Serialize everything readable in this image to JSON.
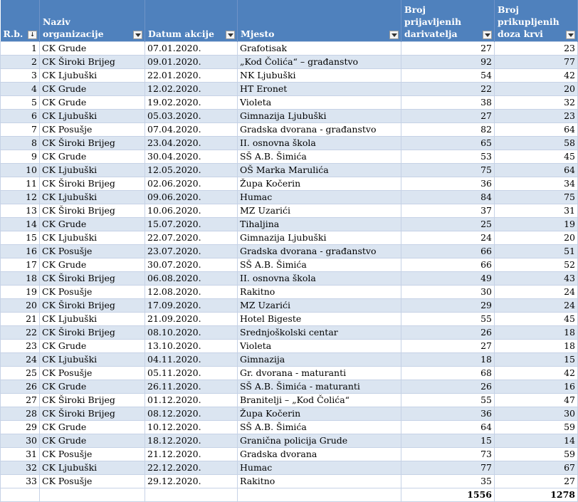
{
  "headers": [
    {
      "label": "R.b.",
      "filter": "sorted"
    },
    {
      "label": "Naziv organizacije",
      "filter": "dropdown"
    },
    {
      "label": "Datum akcije",
      "filter": "dropdown"
    },
    {
      "label": "Mjesto",
      "filter": "dropdown"
    },
    {
      "label": "Broj prijavljenih darivatelja",
      "filter": "dropdown"
    },
    {
      "label": "Broj prikupljenih doza krvi",
      "filter": "dropdown"
    }
  ],
  "rows": [
    [
      "1",
      "CK Grude",
      "07.01.2020.",
      "Grafotisak",
      "27",
      "23"
    ],
    [
      "2",
      "CK Široki Brijeg",
      "09.01.2020.",
      "„Kod Čolića“ – građanstvo",
      "92",
      "77"
    ],
    [
      "3",
      "CK Ljubuški",
      "22.01.2020.",
      "NK Ljubuški",
      "54",
      "42"
    ],
    [
      "4",
      "CK Grude",
      "12.02.2020.",
      "HT Eronet",
      "22",
      "20"
    ],
    [
      "5",
      "CK Grude",
      "19.02.2020.",
      "Violeta",
      "38",
      "32"
    ],
    [
      "6",
      "CK Ljubuški",
      "05.03.2020.",
      "Gimnazija Ljubuški",
      "27",
      "23"
    ],
    [
      "7",
      "CK Posušje",
      "07.04.2020.",
      "Gradska dvorana - građanstvo",
      "82",
      "64"
    ],
    [
      "8",
      "CK Široki Brijeg",
      "23.04.2020.",
      "II. osnovna škola",
      "65",
      "58"
    ],
    [
      "9",
      "CK Grude",
      "30.04.2020.",
      "SŠ A.B. Šimića",
      "53",
      "45"
    ],
    [
      "10",
      "CK Ljubuški",
      "12.05.2020.",
      "OŠ Marka Marulića",
      "75",
      "64"
    ],
    [
      "11",
      "CK Široki Brijeg",
      "02.06.2020.",
      "Župa Kočerin",
      "36",
      "34"
    ],
    [
      "12",
      "CK Ljubuški",
      "09.06.2020.",
      "Humac",
      "84",
      "75"
    ],
    [
      "13",
      "CK Široki Brijeg",
      "10.06.2020.",
      "MZ Uzarići",
      "37",
      "31"
    ],
    [
      "14",
      "CK Grude",
      "15.07.2020.",
      "Tihaljina",
      "25",
      "19"
    ],
    [
      "15",
      "CK Ljubuški",
      "22.07.2020.",
      "Gimnazija Ljubuški",
      "24",
      "20"
    ],
    [
      "16",
      "CK Posušje",
      "23.07.2020.",
      "Gradska dvorana - građanstvo",
      "66",
      "51"
    ],
    [
      "17",
      "CK Grude",
      "30.07.2020.",
      "SŠ A.B. Šimića",
      "66",
      "52"
    ],
    [
      "18",
      "CK Široki Brijeg",
      "06.08.2020.",
      "II. osnovna škola",
      "49",
      "43"
    ],
    [
      "19",
      "CK Posušje",
      "12.08.2020.",
      "Rakitno",
      "30",
      "24"
    ],
    [
      "20",
      "CK Široki Brijeg",
      "17.09.2020.",
      "MZ Uzarići",
      "29",
      "24"
    ],
    [
      "21",
      "CK Ljubuški",
      "21.09.2020.",
      "Hotel Bigeste",
      "55",
      "45"
    ],
    [
      "22",
      "CK Široki Brijeg",
      "08.10.2020.",
      "Srednjoškolski centar",
      "26",
      "18"
    ],
    [
      "23",
      "CK Grude",
      "13.10.2020.",
      "Violeta",
      "27",
      "18"
    ],
    [
      "24",
      "CK Ljubuški",
      "04.11.2020.",
      "Gimnazija",
      "18",
      "15"
    ],
    [
      "25",
      "CK Posušje",
      "05.11.2020.",
      "Gr. dvorana - maturanti",
      "68",
      "42"
    ],
    [
      "26",
      "CK Grude",
      "26.11.2020.",
      "SŠ A.B. Šimića - maturanti",
      "26",
      "16"
    ],
    [
      "27",
      "CK Široki Brijeg",
      "01.12.2020.",
      "Branitelji – „Kod Čolića“",
      "55",
      "47"
    ],
    [
      "28",
      "CK Široki Brijeg",
      "08.12.2020.",
      "Župa Kočerin",
      "36",
      "30"
    ],
    [
      "29",
      "CK Grude",
      "10.12.2020.",
      "SŠ A.B. Šimića",
      "64",
      "59"
    ],
    [
      "30",
      "CK Grude",
      "18.12.2020.",
      "Granična policija Grude",
      "15",
      "14"
    ],
    [
      "31",
      "CK Posušje",
      "21.12.2020.",
      "Gradska dvorana",
      "73",
      "59"
    ],
    [
      "32",
      "CK Ljubuški",
      "22.12.2020.",
      "Humac",
      "77",
      "67"
    ],
    [
      "33",
      "CK Posušje",
      "29.12.2020.",
      "Rakitno",
      "35",
      "27"
    ]
  ],
  "totals": {
    "donors": "1556",
    "doses": "1278"
  },
  "colors": {
    "header_bg": "#4f81bd",
    "band_row": "#dbe5f1",
    "grid": "#c6d2e6"
  }
}
